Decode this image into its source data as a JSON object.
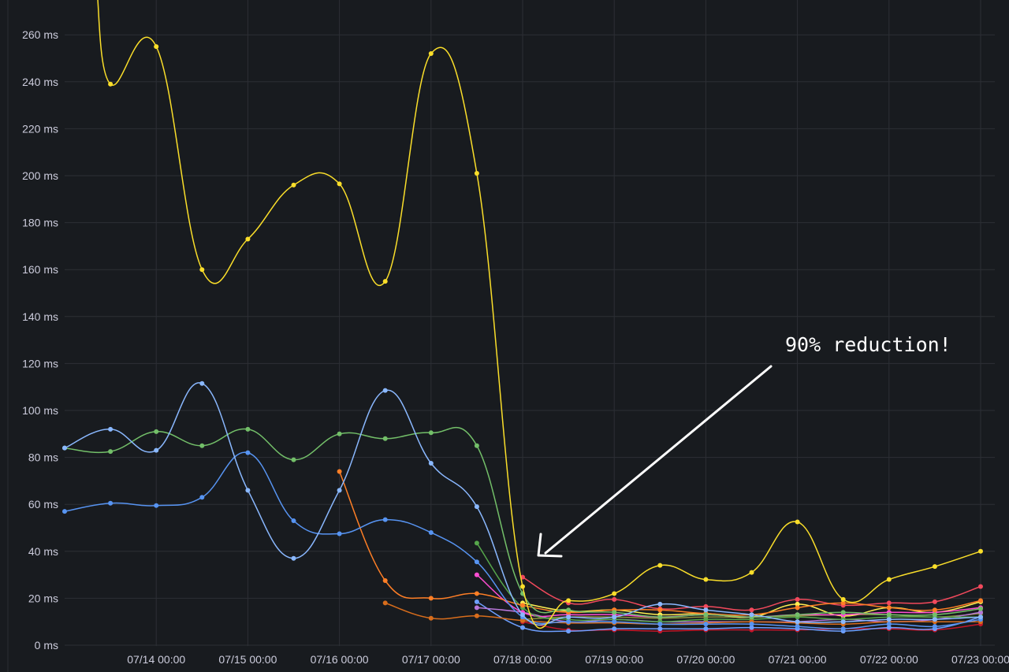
{
  "chart_data": {
    "type": "line",
    "x_unit": "day",
    "x_range": [
      "07/13 13:00",
      "07/23 13:00"
    ],
    "xticks": [
      "07/14 00:00",
      "07/15 00:00",
      "07/16 00:00",
      "07/17 00:00",
      "07/18 00:00",
      "07/19 00:00",
      "07/20 00:00",
      "07/21 00:00",
      "07/22 00:00",
      "07/23 00:00"
    ],
    "xtick_values": [
      14,
      15,
      16,
      17,
      18,
      19,
      20,
      21,
      22,
      23
    ],
    "yticks": [
      "0 ms",
      "20 ms",
      "40 ms",
      "60 ms",
      "80 ms",
      "100 ms",
      "120 ms",
      "140 ms",
      "160 ms",
      "180 ms",
      "200 ms",
      "220 ms",
      "240 ms",
      "260 ms"
    ],
    "ylim": [
      0,
      275
    ],
    "grid": true,
    "annotation": {
      "text": "90% reduction!"
    },
    "series": [
      {
        "color": "#fade2a",
        "points": [
          [
            13.35,
            280
          ],
          [
            13.5,
            239
          ],
          [
            14.0,
            255
          ],
          [
            14.5,
            160
          ],
          [
            15.0,
            173
          ],
          [
            15.5,
            196
          ],
          [
            16.0,
            196.5
          ],
          [
            16.5,
            155
          ],
          [
            17.0,
            252
          ],
          [
            17.5,
            201
          ],
          [
            18.0,
            25
          ],
          [
            18.5,
            19
          ],
          [
            19.0,
            22
          ],
          [
            19.5,
            34
          ],
          [
            20.0,
            28
          ],
          [
            20.5,
            31
          ],
          [
            21.0,
            52.5
          ],
          [
            21.5,
            19.5
          ],
          [
            22.0,
            28
          ],
          [
            22.5,
            33.5
          ],
          [
            23.0,
            40
          ]
        ]
      },
      {
        "color": "#8ab8ff",
        "points": [
          [
            13.0,
            84
          ],
          [
            13.5,
            92
          ],
          [
            14.0,
            83
          ],
          [
            14.5,
            111.5
          ],
          [
            15.0,
            66
          ],
          [
            15.5,
            37
          ],
          [
            16.0,
            66
          ],
          [
            16.5,
            108.5
          ],
          [
            17.0,
            77.5
          ],
          [
            17.5,
            59
          ],
          [
            18.0,
            13
          ],
          [
            18.5,
            12
          ],
          [
            19.0,
            12
          ],
          [
            19.5,
            17.5
          ],
          [
            20.0,
            15
          ],
          [
            20.5,
            13
          ],
          [
            21.0,
            10
          ],
          [
            21.5,
            10
          ],
          [
            22.0,
            11
          ],
          [
            22.5,
            11
          ],
          [
            23.0,
            12
          ]
        ]
      },
      {
        "color": "#73bf69",
        "points": [
          [
            13.0,
            84
          ],
          [
            13.5,
            82.5
          ],
          [
            14.0,
            91
          ],
          [
            14.5,
            85
          ],
          [
            15.0,
            92
          ],
          [
            15.5,
            79
          ],
          [
            16.0,
            90
          ],
          [
            16.5,
            88
          ],
          [
            17.0,
            90.5
          ],
          [
            17.5,
            85
          ],
          [
            18.0,
            22
          ],
          [
            18.5,
            15
          ],
          [
            19.0,
            14
          ],
          [
            19.5,
            12
          ],
          [
            20.0,
            13
          ],
          [
            20.5,
            12
          ],
          [
            21.0,
            13
          ],
          [
            21.5,
            14
          ],
          [
            22.0,
            13
          ],
          [
            22.5,
            13
          ],
          [
            23.0,
            15.5
          ]
        ]
      },
      {
        "color": "#5794f2",
        "points": [
          [
            13.0,
            57
          ],
          [
            13.5,
            60.5
          ],
          [
            14.0,
            59.5
          ],
          [
            14.5,
            63
          ],
          [
            15.0,
            82
          ],
          [
            15.5,
            53
          ],
          [
            16.0,
            47.5
          ],
          [
            16.5,
            53.5
          ],
          [
            17.0,
            48
          ],
          [
            17.5,
            35.5
          ],
          [
            18.0,
            12
          ],
          [
            18.5,
            10
          ],
          [
            19.0,
            10
          ],
          [
            19.5,
            9
          ],
          [
            20.0,
            9
          ],
          [
            20.5,
            9
          ],
          [
            21.0,
            8
          ],
          [
            21.5,
            7
          ],
          [
            22.0,
            9
          ],
          [
            22.5,
            8
          ],
          [
            23.0,
            11
          ]
        ]
      },
      {
        "color": "#ff7f26",
        "points": [
          [
            16.0,
            74
          ],
          [
            16.5,
            27.5
          ],
          [
            17.0,
            20
          ],
          [
            17.5,
            22
          ],
          [
            18.0,
            17
          ],
          [
            18.5,
            14
          ],
          [
            19.0,
            15
          ],
          [
            19.5,
            15
          ],
          [
            20.0,
            13.5
          ],
          [
            20.5,
            13
          ],
          [
            21.0,
            16
          ],
          [
            21.5,
            18
          ],
          [
            22.0,
            16
          ],
          [
            22.5,
            15
          ],
          [
            23.0,
            19
          ]
        ]
      },
      {
        "color": "#d86d1c",
        "points": [
          [
            16.5,
            18
          ],
          [
            17.0,
            11.5
          ],
          [
            17.5,
            12.5
          ],
          [
            18.0,
            10.5
          ],
          [
            18.5,
            9.5
          ],
          [
            19.0,
            9.5
          ],
          [
            19.5,
            9
          ],
          [
            20.0,
            9.5
          ],
          [
            20.5,
            10
          ],
          [
            21.0,
            9.5
          ],
          [
            21.5,
            9
          ],
          [
            22.0,
            10
          ],
          [
            22.5,
            10
          ],
          [
            23.0,
            10
          ]
        ]
      },
      {
        "color": "#f2495c",
        "points": [
          [
            18.0,
            29
          ],
          [
            18.5,
            18
          ],
          [
            19.0,
            19.5
          ],
          [
            19.5,
            15.5
          ],
          [
            20.0,
            16.5
          ],
          [
            20.5,
            15
          ],
          [
            21.0,
            19.5
          ],
          [
            21.5,
            17
          ],
          [
            22.0,
            18
          ],
          [
            22.5,
            18.5
          ],
          [
            23.0,
            25
          ]
        ]
      },
      {
        "color": "#56a64b",
        "points": [
          [
            17.5,
            43.5
          ],
          [
            18.0,
            16
          ],
          [
            18.5,
            11
          ],
          [
            19.0,
            11
          ],
          [
            19.5,
            10
          ],
          [
            20.0,
            11
          ],
          [
            20.5,
            11
          ],
          [
            21.0,
            12
          ],
          [
            21.5,
            11
          ],
          [
            22.0,
            12
          ],
          [
            22.5,
            12
          ],
          [
            23.0,
            12
          ]
        ]
      },
      {
        "color": "#ff4dd2",
        "points": [
          [
            17.5,
            30
          ],
          [
            18.0,
            14
          ],
          [
            18.5,
            13
          ],
          [
            19.0,
            13
          ],
          [
            19.5,
            12
          ],
          [
            20.0,
            13
          ],
          [
            20.5,
            12
          ],
          [
            21.0,
            13
          ],
          [
            21.5,
            13
          ],
          [
            22.0,
            14
          ],
          [
            22.5,
            14
          ],
          [
            23.0,
            16
          ]
        ]
      },
      {
        "color": "#b877d9",
        "points": [
          [
            17.5,
            16
          ],
          [
            18.0,
            14
          ],
          [
            18.5,
            10
          ],
          [
            19.0,
            11
          ],
          [
            19.5,
            10
          ],
          [
            20.0,
            10
          ],
          [
            20.5,
            10
          ],
          [
            21.0,
            10
          ],
          [
            21.5,
            11
          ],
          [
            22.0,
            10
          ],
          [
            22.5,
            11
          ],
          [
            23.0,
            14
          ]
        ]
      },
      {
        "color": "#6e9fff",
        "points": [
          [
            17.5,
            18.5
          ],
          [
            18.0,
            7.5
          ],
          [
            18.5,
            6
          ],
          [
            19.0,
            7
          ],
          [
            19.5,
            7
          ],
          [
            20.0,
            7
          ],
          [
            20.5,
            7.5
          ],
          [
            21.0,
            7
          ],
          [
            21.5,
            6
          ],
          [
            22.0,
            7.5
          ],
          [
            22.5,
            7
          ],
          [
            23.0,
            12
          ]
        ]
      },
      {
        "color": "#c4162a",
        "points": [
          [
            18.0,
            10
          ],
          [
            18.5,
            6.5
          ],
          [
            19.0,
            6.5
          ],
          [
            19.5,
            6
          ],
          [
            20.0,
            6.5
          ],
          [
            20.5,
            6.5
          ],
          [
            21.0,
            6.5
          ],
          [
            21.5,
            7
          ],
          [
            22.0,
            7
          ],
          [
            22.5,
            6.5
          ],
          [
            23.0,
            9
          ]
        ]
      },
      {
        "color": "#ffee52",
        "points": [
          [
            18.0,
            18
          ],
          [
            18.5,
            14.5
          ],
          [
            19.0,
            15
          ],
          [
            19.5,
            13
          ],
          [
            20.0,
            13.5
          ],
          [
            20.5,
            12
          ],
          [
            21.0,
            17.5
          ],
          [
            21.5,
            12.5
          ],
          [
            22.0,
            16
          ],
          [
            22.5,
            14
          ],
          [
            23.0,
            18.5
          ]
        ]
      },
      {
        "color": "#8f8f3d",
        "points": [
          [
            18.0,
            11
          ],
          [
            18.5,
            12
          ],
          [
            19.0,
            12
          ],
          [
            19.5,
            11.5
          ],
          [
            20.0,
            12
          ],
          [
            20.5,
            12
          ],
          [
            21.0,
            12.5
          ],
          [
            21.5,
            13
          ],
          [
            22.0,
            13
          ],
          [
            22.5,
            12
          ],
          [
            23.0,
            13.5
          ]
        ]
      }
    ]
  }
}
